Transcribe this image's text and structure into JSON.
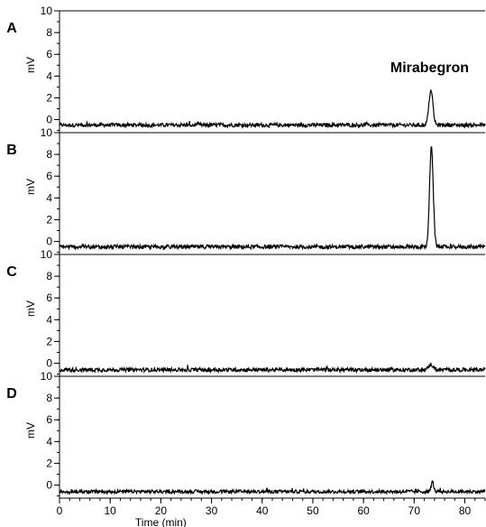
{
  "chart_data": {
    "type": "line",
    "xlabel": "Time (min)",
    "xlim": [
      0,
      84
    ],
    "x_ticks": [
      0,
      10,
      20,
      30,
      40,
      50,
      60,
      70,
      80
    ],
    "x_minor_step": 2,
    "y_ticks": [
      0,
      2,
      4,
      6,
      8,
      10
    ],
    "y_minor_step": 1,
    "grid": false,
    "line_color": "#000000",
    "panels": [
      {
        "label": "A",
        "ylabel": "mV",
        "ylim": [
          -1.2,
          10
        ],
        "baseline": -0.5,
        "noise": 0.18,
        "peak": {
          "x": 73.3,
          "height": 3.2,
          "width": 0.55
        },
        "annotation": "Mirabegron"
      },
      {
        "label": "B",
        "ylabel": "mV",
        "ylim": [
          -1.2,
          10
        ],
        "baseline": -0.5,
        "noise": 0.18,
        "peak": {
          "x": 73.4,
          "height": 9.3,
          "width": 0.5
        },
        "annotation": ""
      },
      {
        "label": "C",
        "ylabel": "mV",
        "ylim": [
          -1.2,
          10
        ],
        "baseline": -0.6,
        "noise": 0.18,
        "peak": {
          "x": 73.3,
          "height": 0.5,
          "width": 0.6
        },
        "annotation": ""
      },
      {
        "label": "D",
        "ylabel": "mV",
        "ylim": [
          -1.2,
          10
        ],
        "baseline": -0.6,
        "noise": 0.16,
        "peak": {
          "x": 73.6,
          "height": 0.9,
          "width": 0.35
        },
        "annotation": ""
      }
    ]
  }
}
